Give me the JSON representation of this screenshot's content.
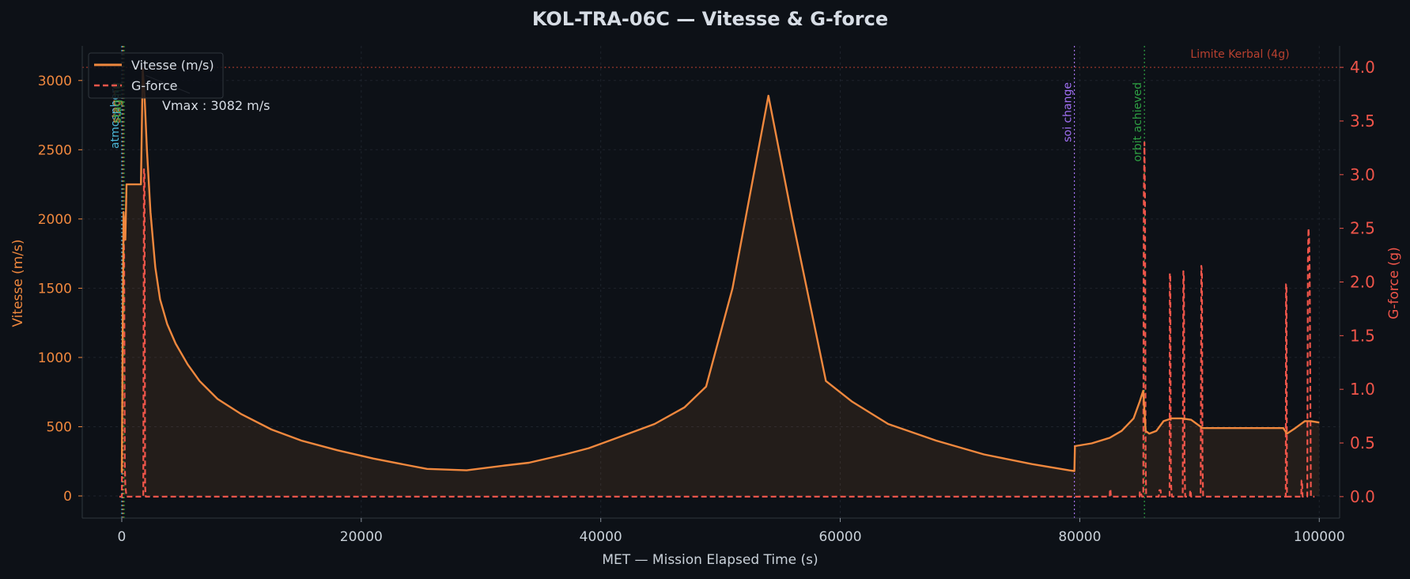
{
  "chart_data": {
    "type": "line",
    "title": "KOL-TRA-06C — Vitesse & G-force",
    "xlabel": "MET — Mission Elapsed Time (s)",
    "ylabel_left": "Vitesse (m/s)",
    "ylabel_right": "G-force (g)",
    "xlim": [
      -3300,
      101700
    ],
    "ylim_left": [
      -160,
      3250
    ],
    "ylim_right": [
      -0.2,
      4.2
    ],
    "x_ticks": [
      0,
      20000,
      40000,
      60000,
      80000,
      100000
    ],
    "x_tick_labels": [
      "0",
      "20000",
      "40000",
      "60000",
      "80000",
      "100000"
    ],
    "y_left_ticks": [
      0,
      500,
      1000,
      1500,
      2000,
      2500,
      3000
    ],
    "y_left_tick_labels": [
      "0",
      "500",
      "1000",
      "1500",
      "2000",
      "2500",
      "3000"
    ],
    "y_right_ticks": [
      0,
      0.5,
      1,
      1.5,
      2,
      2.5,
      3,
      3.5,
      4
    ],
    "y_right_tick_labels": [
      "0.0",
      "0.5",
      "1.0",
      "1.5",
      "2.0",
      "2.5",
      "3.0",
      "3.5",
      "4.0"
    ],
    "grid": true,
    "legend_position": "top-left",
    "colors": {
      "background": "#0d1117",
      "velocity": "#f0883e",
      "gforce": "#f0554a",
      "axis_text": "#c9d1d9",
      "limit_line": "#b8402f"
    },
    "series": [
      {
        "name": "Vitesse (m/s)",
        "axis": "left",
        "style": "solid",
        "x": [
          0,
          150,
          300,
          400,
          650,
          1400,
          1600,
          1750,
          1900,
          2100,
          2400,
          2800,
          3200,
          3800,
          4500,
          5500,
          6500,
          8000,
          10000,
          12500,
          15000,
          18000,
          21000,
          24000,
          25500,
          28800,
          32000,
          34000,
          37000,
          39000,
          42000,
          44500,
          47000,
          48800,
          51000,
          54000,
          56000,
          58800,
          61000,
          64000,
          68000,
          72000,
          76000,
          79100,
          79550,
          79600,
          81000,
          82500,
          83500,
          84500,
          85000,
          85300,
          85500,
          85800,
          86400,
          87000,
          87700,
          88500,
          89300,
          90100,
          90200,
          97000,
          97300,
          98000,
          98800,
          99300,
          100000
        ],
        "values": [
          170,
          2050,
          1850,
          2250,
          2250,
          2250,
          2250,
          3082,
          2900,
          2500,
          2050,
          1650,
          1420,
          1240,
          1100,
          950,
          830,
          700,
          590,
          480,
          400,
          330,
          270,
          220,
          195,
          185,
          220,
          240,
          300,
          345,
          440,
          520,
          640,
          790,
          1500,
          2890,
          2000,
          830,
          680,
          520,
          400,
          300,
          230,
          185,
          180,
          360,
          380,
          420,
          470,
          560,
          680,
          760,
          470,
          450,
          470,
          540,
          560,
          560,
          550,
          500,
          490,
          490,
          450,
          490,
          540,
          540,
          530
        ]
      },
      {
        "name": "G-force",
        "axis": "right",
        "style": "dashed",
        "x": [
          -200,
          0,
          20,
          60,
          120,
          150,
          200,
          250,
          300,
          400,
          500,
          550,
          1800,
          1850,
          1900,
          1950,
          2000,
          82500,
          82520,
          82560,
          82600,
          85000,
          85020,
          85060,
          85200,
          85300,
          85350,
          85400,
          85450,
          85500,
          85550,
          86600,
          86650,
          86700,
          86750,
          86800,
          87500,
          87520,
          87560,
          87600,
          87640,
          87700,
          88600,
          88650,
          88700,
          88750,
          88800,
          89200,
          89220,
          89260,
          89300,
          89340,
          89400,
          90100,
          90150,
          90200,
          90250,
          90300,
          97200,
          97220,
          97260,
          97300,
          98500,
          98520,
          98560,
          98600,
          99000,
          99050,
          99100,
          99150,
          99200,
          99300,
          99600
        ],
        "values": [
          0,
          0,
          0.45,
          1.2,
          2.2,
          2.5,
          2.25,
          0.3,
          0.1,
          0,
          0,
          0,
          0,
          3.05,
          3.0,
          0.1,
          0,
          0,
          0.07,
          0.07,
          0,
          0,
          0.05,
          0.05,
          0,
          0,
          2.8,
          3.3,
          2.8,
          0.3,
          0,
          0,
          0.06,
          0.06,
          0.06,
          0,
          0,
          2.08,
          2.08,
          0.3,
          0.08,
          0,
          0,
          2.1,
          2.05,
          0.3,
          0,
          0,
          0.06,
          0.06,
          0,
          0,
          0,
          0,
          2.15,
          2.1,
          0.3,
          0,
          0,
          1.98,
          1.98,
          0,
          0,
          0.15,
          0.15,
          0,
          0,
          2.2,
          2.5,
          2.4,
          2.1,
          0,
          0
        ]
      }
    ],
    "events": [
      {
        "x": 0,
        "label": "atmosphere",
        "color": "#4cb8d8"
      },
      {
        "x": 100,
        "label": "staging",
        "color": "#e07b39"
      },
      {
        "x": 200,
        "label": "staging",
        "color": "#2ea043"
      },
      {
        "x": 79550,
        "label": "soi change",
        "color": "#a371f7"
      },
      {
        "x": 85400,
        "label": "orbit achieved",
        "color": "#2ea043"
      }
    ],
    "limit": {
      "y": 4.0,
      "label": "Limite Kerbal (4g)"
    },
    "annotation": {
      "text": "Vmax : 3082 m/s",
      "x": 1750,
      "y": 3082
    }
  }
}
